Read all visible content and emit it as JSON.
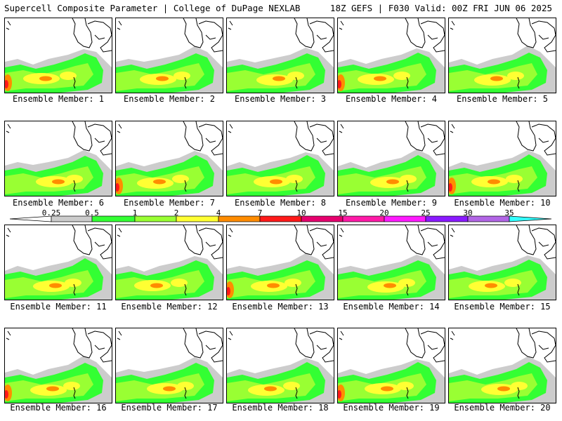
{
  "header": {
    "title": "Supercell Composite Parameter | College of DuPage NEXLAB",
    "run_info": "18Z GEFS | F030 Valid: 00Z FRI JUN 06 2025"
  },
  "legend": {
    "ticks": [
      "0.25",
      "0.5",
      "1",
      "2",
      "4",
      "7",
      "10",
      "15",
      "20",
      "25",
      "30",
      "35"
    ],
    "colors": [
      "#cccccc",
      "#33ff33",
      "#99ff33",
      "#ffff33",
      "#ff8c00",
      "#ff1a1a",
      "#e6006e",
      "#ff1aa8",
      "#ff1aff",
      "#8a1aff",
      "#b266e6",
      "#33ffff"
    ]
  },
  "panels": [
    {
      "label": "Ensemble Member: 1"
    },
    {
      "label": "Ensemble Member: 2"
    },
    {
      "label": "Ensemble Member: 3"
    },
    {
      "label": "Ensemble Member: 4"
    },
    {
      "label": "Ensemble Member: 5"
    },
    {
      "label": "Ensemble Member: 6"
    },
    {
      "label": "Ensemble Member: 7"
    },
    {
      "label": "Ensemble Member: 8"
    },
    {
      "label": "Ensemble Member: 9"
    },
    {
      "label": "Ensemble Member: 10"
    },
    {
      "label": "Ensemble Member: 11"
    },
    {
      "label": "Ensemble Member: 12"
    },
    {
      "label": "Ensemble Member: 13"
    },
    {
      "label": "Ensemble Member: 14"
    },
    {
      "label": "Ensemble Member: 15"
    },
    {
      "label": "Ensemble Member: 16"
    },
    {
      "label": "Ensemble Member: 17"
    },
    {
      "label": "Ensemble Member: 18"
    },
    {
      "label": "Ensemble Member: 19"
    },
    {
      "label": "Ensemble Member: 20"
    }
  ]
}
